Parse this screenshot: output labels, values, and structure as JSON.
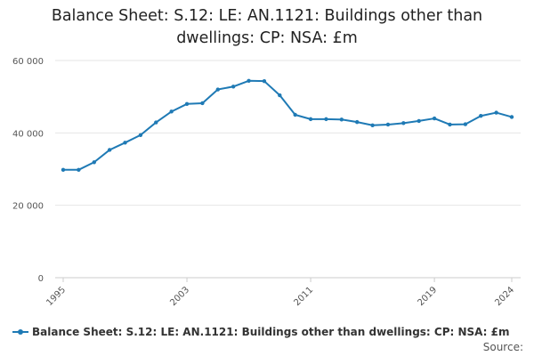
{
  "chart_data": {
    "type": "line",
    "title_lines": [
      "Balance Sheet: S.12: LE: AN.1121: Buildings other than",
      "dwellings: CP: NSA: £m"
    ],
    "xlabel": "",
    "ylabel": "",
    "x": [
      1995,
      1996,
      1997,
      1998,
      1999,
      2000,
      2001,
      2002,
      2003,
      2004,
      2005,
      2006,
      2007,
      2008,
      2009,
      2010,
      2011,
      2012,
      2013,
      2014,
      2015,
      2016,
      2017,
      2018,
      2019,
      2020,
      2021,
      2022,
      2023,
      2024
    ],
    "series": [
      {
        "name": "Balance Sheet: S.12: LE: AN.1121: Buildings other than dwellings: CP: NSA: £m",
        "values": [
          29800,
          29800,
          31900,
          35300,
          37300,
          39400,
          42900,
          45900,
          48000,
          48200,
          52000,
          52800,
          54400,
          54300,
          50400,
          45000,
          43800,
          43800,
          43700,
          43000,
          42100,
          42300,
          42700,
          43300,
          44000,
          42300,
          42400,
          44700,
          45600,
          44400
        ],
        "color": "#1f7ab5"
      }
    ],
    "x_ticks": [
      1995,
      2003,
      2011,
      2019,
      2024
    ],
    "x_tick_labels": [
      "1995",
      "2003",
      "2011",
      "2019",
      "2024"
    ],
    "y_ticks": [
      0,
      20000,
      40000,
      60000
    ],
    "y_tick_labels": [
      "0",
      "20 000",
      "40 000",
      "60 000"
    ],
    "xlim": [
      1995,
      2024
    ],
    "ylim": [
      0,
      60000
    ],
    "grid": "horizontal",
    "legend_position": "bottom",
    "source_label": "Source:"
  }
}
